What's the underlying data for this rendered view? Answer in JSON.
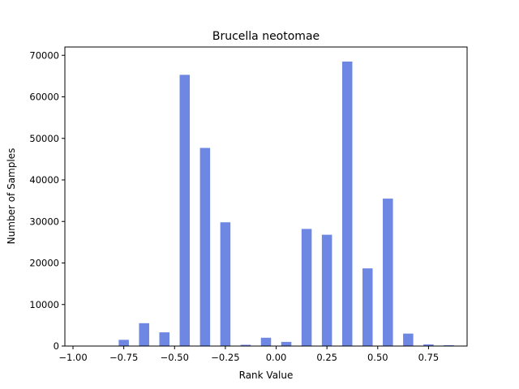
{
  "chart_data": {
    "type": "bar",
    "title": "Brucella neotomae",
    "xlabel": "Rank Value",
    "ylabel": "Number of Samples",
    "xlim": [
      -1.04,
      0.94
    ],
    "ylim": [
      0,
      72000
    ],
    "bar_width": 0.05,
    "grid": false,
    "bar_color": "#6d87e3",
    "x_ticks": [
      -1.0,
      -0.75,
      -0.5,
      -0.25,
      0.0,
      0.25,
      0.5,
      0.75
    ],
    "x_tick_labels": [
      "−1.00",
      "−0.75",
      "−0.50",
      "−0.25",
      "0.00",
      "0.25",
      "0.50",
      "0.75"
    ],
    "y_ticks": [
      0,
      10000,
      20000,
      30000,
      40000,
      50000,
      60000,
      70000
    ],
    "y_tick_labels": [
      "0",
      "10000",
      "20000",
      "30000",
      "40000",
      "50000",
      "60000",
      "70000"
    ],
    "x": [
      -0.95,
      -0.85,
      -0.75,
      -0.65,
      -0.55,
      -0.45,
      -0.35,
      -0.25,
      -0.15,
      -0.05,
      0.05,
      0.15,
      0.25,
      0.35,
      0.45,
      0.55,
      0.65,
      0.75,
      0.85
    ],
    "values": [
      0,
      0,
      1500,
      5500,
      3300,
      65300,
      47700,
      29800,
      300,
      2000,
      1000,
      28200,
      26800,
      68500,
      18700,
      35500,
      3000,
      400,
      200
    ]
  }
}
